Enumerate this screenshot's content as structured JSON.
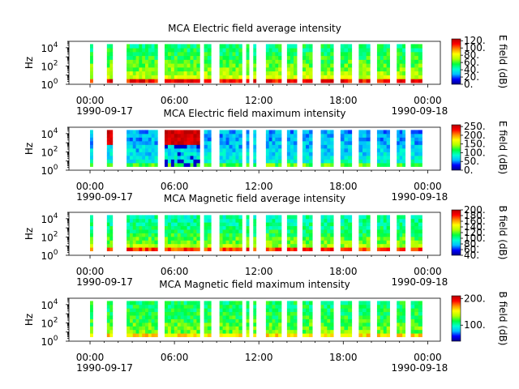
{
  "chart_data": [
    {
      "type": "heatmap",
      "title": "MCA  Electric field average intensity",
      "ylabel": "Hz",
      "yscale": "log",
      "ylim": [
        1,
        50000
      ],
      "yticks": [
        {
          "value": 1,
          "base": "10",
          "exp": "0"
        },
        {
          "value": 100,
          "base": "10",
          "exp": "2"
        },
        {
          "value": 10000,
          "base": "10",
          "exp": "4"
        }
      ],
      "xlim_hours": [
        -1.5,
        24.9
      ],
      "xticks": [
        {
          "hour": 0,
          "label": "00:00"
        },
        {
          "hour": 6,
          "label": "06:00"
        },
        {
          "hour": 12,
          "label": "12:00"
        },
        {
          "hour": 18,
          "label": "18:00"
        },
        {
          "hour": 24,
          "label": "00:00"
        }
      ],
      "date_labels": [
        {
          "hour": 0,
          "label": "1990-09-17"
        },
        {
          "hour": 24,
          "label": "1990-09-18"
        }
      ],
      "colorbar": {
        "label": "E field (dB)",
        "min": 0,
        "max": 125,
        "ticks": [
          {
            "value": 0,
            "label": "0."
          },
          {
            "value": 20,
            "label": "20."
          },
          {
            "value": 40,
            "label": "40."
          },
          {
            "value": 60,
            "label": "60."
          },
          {
            "value": 80,
            "label": "80."
          },
          {
            "value": 100,
            "label": "100."
          },
          {
            "value": 120,
            "label": "120."
          }
        ]
      },
      "data_band": [
        1.5,
        25000
      ],
      "intensity_level": 0.45
    },
    {
      "type": "heatmap",
      "title": "MCA  Electric field maximum intensity",
      "ylabel": "Hz",
      "yscale": "log",
      "ylim": [
        1,
        50000
      ],
      "yticks": [
        {
          "value": 1,
          "base": "10",
          "exp": "0"
        },
        {
          "value": 100,
          "base": "10",
          "exp": "2"
        },
        {
          "value": 10000,
          "base": "10",
          "exp": "4"
        }
      ],
      "xlim_hours": [
        -1.5,
        24.9
      ],
      "xticks": [
        {
          "hour": 0,
          "label": "00:00"
        },
        {
          "hour": 6,
          "label": "06:00"
        },
        {
          "hour": 12,
          "label": "12:00"
        },
        {
          "hour": 18,
          "label": "18:00"
        },
        {
          "hour": 24,
          "label": "00:00"
        }
      ],
      "date_labels": [
        {
          "hour": 0,
          "label": "1990-09-17"
        },
        {
          "hour": 24,
          "label": "1990-09-18"
        }
      ],
      "colorbar": {
        "label": "E field (dB)",
        "min": 0,
        "max": 260,
        "ticks": [
          {
            "value": 0,
            "label": "0."
          },
          {
            "value": 50,
            "label": "50."
          },
          {
            "value": 100,
            "label": "100."
          },
          {
            "value": 150,
            "label": "150."
          },
          {
            "value": 200,
            "label": "200."
          },
          {
            "value": 250,
            "label": "250."
          }
        ]
      },
      "data_band": [
        2.5,
        25000
      ],
      "intensity_level": 0.25
    },
    {
      "type": "heatmap",
      "title": "MCA  Magnetic field average intensity",
      "ylabel": "Hz",
      "yscale": "log",
      "ylim": [
        1,
        50000
      ],
      "yticks": [
        {
          "value": 1,
          "base": "10",
          "exp": "0"
        },
        {
          "value": 100,
          "base": "10",
          "exp": "2"
        },
        {
          "value": 10000,
          "base": "10",
          "exp": "4"
        }
      ],
      "xlim_hours": [
        -1.5,
        24.9
      ],
      "xticks": [
        {
          "hour": 0,
          "label": "00:00"
        },
        {
          "hour": 6,
          "label": "06:00"
        },
        {
          "hour": 12,
          "label": "12:00"
        },
        {
          "hour": 18,
          "label": "18:00"
        },
        {
          "hour": 24,
          "label": "00:00"
        }
      ],
      "date_labels": [
        {
          "hour": 0,
          "label": "1990-09-17"
        },
        {
          "hour": 24,
          "label": "1990-09-18"
        }
      ],
      "colorbar": {
        "label": "B field (dB)",
        "min": 40,
        "max": 200,
        "ticks": [
          {
            "value": 40,
            "label": "40."
          },
          {
            "value": 60,
            "label": "60."
          },
          {
            "value": 80,
            "label": "80."
          },
          {
            "value": 100,
            "label": "100."
          },
          {
            "value": 120,
            "label": "120."
          },
          {
            "value": 140,
            "label": "140."
          },
          {
            "value": 160,
            "label": "160."
          },
          {
            "value": 180,
            "label": "180."
          },
          {
            "value": 200,
            "label": "200."
          }
        ]
      },
      "data_band": [
        3,
        25000
      ],
      "intensity_level": 0.4
    },
    {
      "type": "heatmap",
      "title": "MCA  Magnetic field maximum intensity",
      "ylabel": "Hz",
      "yscale": "log",
      "ylim": [
        1,
        50000
      ],
      "yticks": [
        {
          "value": 1,
          "base": "10",
          "exp": "0"
        },
        {
          "value": 100,
          "base": "10",
          "exp": "2"
        },
        {
          "value": 10000,
          "base": "10",
          "exp": "4"
        }
      ],
      "xlim_hours": [
        -1.5,
        24.9
      ],
      "xticks": [
        {
          "hour": 0,
          "label": "00:00"
        },
        {
          "hour": 6,
          "label": "06:00"
        },
        {
          "hour": 12,
          "label": "12:00"
        },
        {
          "hour": 18,
          "label": "18:00"
        },
        {
          "hour": 24,
          "label": "00:00"
        }
      ],
      "date_labels": [
        {
          "hour": 0,
          "label": "1990-09-17"
        },
        {
          "hour": 24,
          "label": "1990-09-18"
        }
      ],
      "colorbar": {
        "label": "B field (dB)",
        "min": 40,
        "max": 210,
        "ticks": [
          {
            "value": 100,
            "label": "100."
          },
          {
            "value": 200,
            "label": "200."
          }
        ]
      },
      "data_band": [
        3,
        25000
      ],
      "intensity_level": 0.45
    }
  ],
  "data_intervals_hours": [
    [
      0.0,
      0.2
    ],
    [
      1.2,
      1.6
    ],
    [
      2.6,
      4.8
    ],
    [
      5.3,
      7.8
    ],
    [
      8.1,
      8.6
    ],
    [
      9.2,
      10.8
    ],
    [
      11.1,
      11.3
    ],
    [
      11.6,
      11.8
    ],
    [
      12.5,
      13.6
    ],
    [
      14.0,
      14.7
    ],
    [
      15.1,
      15.8
    ],
    [
      16.4,
      17.3
    ],
    [
      17.8,
      18.6
    ],
    [
      19.1,
      19.9
    ],
    [
      20.4,
      21.3
    ],
    [
      21.8,
      22.4
    ],
    [
      22.8,
      23.6
    ]
  ],
  "colormap": [
    "#00008b",
    "#0000ff",
    "#00bfff",
    "#00ffd0",
    "#00ff40",
    "#b0ff00",
    "#ffff00",
    "#ff8c00",
    "#ff0000",
    "#b30000"
  ]
}
